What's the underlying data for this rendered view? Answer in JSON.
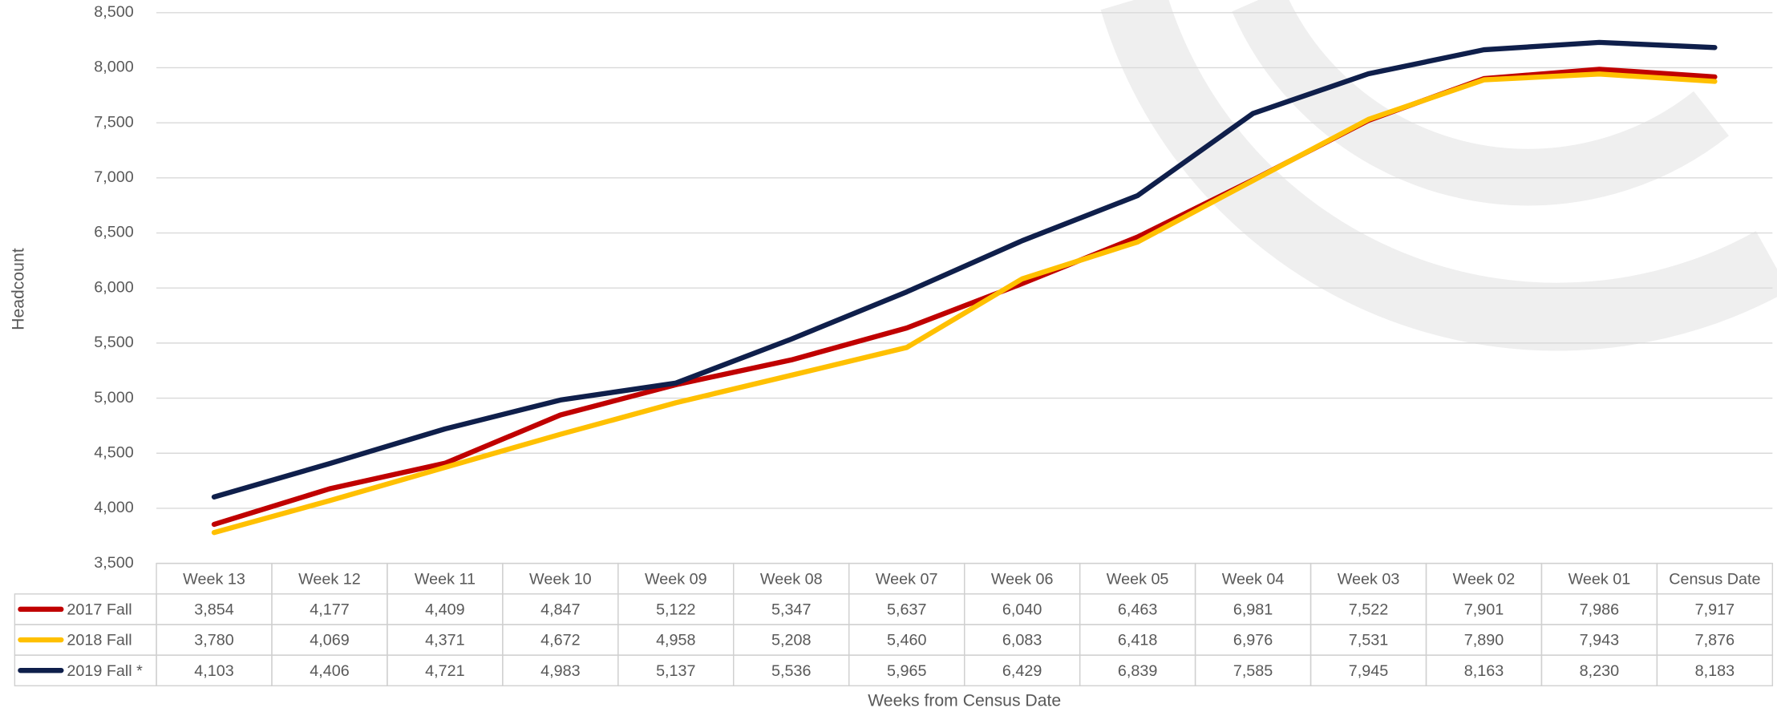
{
  "chart_data": {
    "type": "line",
    "y_label": "Headcount",
    "x_label": "Weeks from Census Date",
    "categories": [
      "Week 13",
      "Week 12",
      "Week 11",
      "Week 10",
      "Week 09",
      "Week 08",
      "Week 07",
      "Week 06",
      "Week 05",
      "Week 04",
      "Week 03",
      "Week 02",
      "Week 01",
      "Census Date"
    ],
    "series": [
      {
        "name": "2017 Fall",
        "color": "#c00000",
        "values": [
          3854,
          4177,
          4409,
          4847,
          5122,
          5347,
          5637,
          6040,
          6463,
          6981,
          7522,
          7901,
          7986,
          7917
        ],
        "value_labels": [
          "3,854",
          "4,177",
          "4,409",
          "4,847",
          "5,122",
          "5,347",
          "5,637",
          "6,040",
          "6,463",
          "6,981",
          "7,522",
          "7,901",
          "7,986",
          "7,917"
        ]
      },
      {
        "name": "2018 Fall",
        "color": "#ffc000",
        "values": [
          3780,
          4069,
          4371,
          4672,
          4958,
          5208,
          5460,
          6083,
          6418,
          6976,
          7531,
          7890,
          7943,
          7876
        ],
        "value_labels": [
          "3,780",
          "4,069",
          "4,371",
          "4,672",
          "4,958",
          "5,208",
          "5,460",
          "6,083",
          "6,418",
          "6,976",
          "7,531",
          "7,890",
          "7,943",
          "7,876"
        ]
      },
      {
        "name": "2019 Fall *",
        "color": "#0f1f4b",
        "values": [
          4103,
          4406,
          4721,
          4983,
          5137,
          5536,
          5965,
          6429,
          6839,
          7585,
          7945,
          8163,
          8230,
          8183
        ],
        "value_labels": [
          "4,103",
          "4,406",
          "4,721",
          "4,983",
          "5,137",
          "5,536",
          "5,965",
          "6,429",
          "6,839",
          "7,585",
          "7,945",
          "8,163",
          "8,230",
          "8,183"
        ]
      }
    ],
    "ylim": [
      3500,
      8500
    ],
    "yticks": [
      {
        "value": 3500,
        "label": "3,500"
      },
      {
        "value": 4000,
        "label": "4,000"
      },
      {
        "value": 4500,
        "label": "4,500"
      },
      {
        "value": 5000,
        "label": "5,000"
      },
      {
        "value": 5500,
        "label": "5,500"
      },
      {
        "value": 6000,
        "label": "6,000"
      },
      {
        "value": 6500,
        "label": "6,500"
      },
      {
        "value": 7000,
        "label": "7,000"
      },
      {
        "value": 7500,
        "label": "7,500"
      },
      {
        "value": 8000,
        "label": "8,000"
      },
      {
        "value": 8500,
        "label": "8,500"
      }
    ],
    "grid": true
  }
}
